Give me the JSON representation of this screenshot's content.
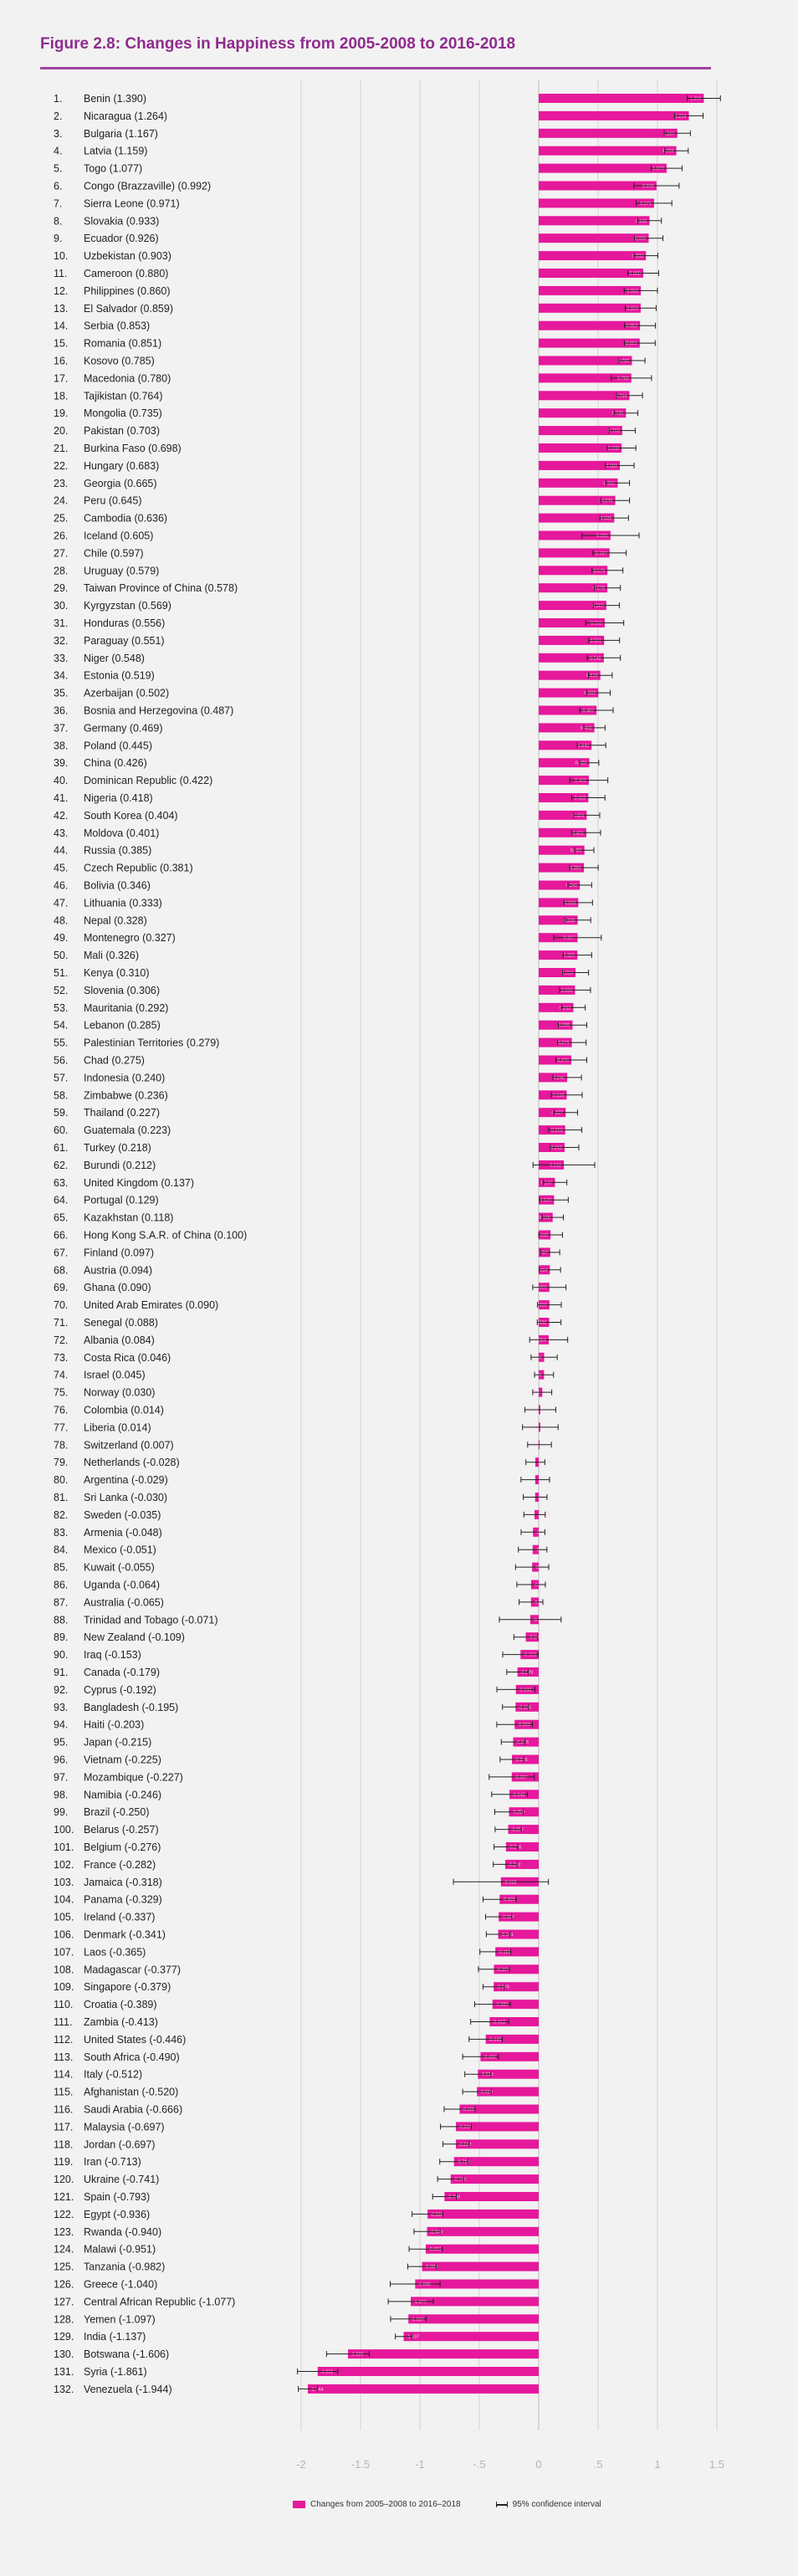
{
  "title": "Figure 2.8: Changes in Happiness from 2005-2008 to 2016-2018",
  "legend": {
    "bar_label": "Changes from 2005–2008 to 2016–2018",
    "ci_label": "95% confidence interval"
  },
  "colors": {
    "bar": "#e6189b",
    "title": "#8e2c8c",
    "grid": "#cfcfcf",
    "ci": "#222222"
  },
  "chart_data": {
    "type": "bar",
    "orientation": "horizontal",
    "xlim": [
      -2.2,
      1.6
    ],
    "xticks": [
      -2,
      -1.5,
      -1,
      -0.5,
      0,
      0.5,
      1,
      1.5
    ],
    "xtick_labels": [
      "-2",
      "-1.5",
      "-1",
      "-.5",
      "0",
      ".5",
      "1",
      "1.5"
    ],
    "grid": "vertical",
    "legend_position": "bottom",
    "rows": [
      {
        "rank": "1.",
        "label": "Benin (1.390)",
        "value": 1.39,
        "ci": 0.14
      },
      {
        "rank": "2.",
        "label": "Nicaragua (1.264)",
        "value": 1.264,
        "ci": 0.12
      },
      {
        "rank": "3.",
        "label": "Bulgaria (1.167)",
        "value": 1.167,
        "ci": 0.11
      },
      {
        "rank": "4.",
        "label": "Latvia (1.159)",
        "value": 1.159,
        "ci": 0.1
      },
      {
        "rank": "5.",
        "label": "Togo (1.077)",
        "value": 1.077,
        "ci": 0.13
      },
      {
        "rank": "6.",
        "label": "Congo (Brazzaville) (0.992)",
        "value": 0.992,
        "ci": 0.19
      },
      {
        "rank": "7.",
        "label": "Sierra Leone (0.971)",
        "value": 0.971,
        "ci": 0.15
      },
      {
        "rank": "8.",
        "label": "Slovakia (0.933)",
        "value": 0.933,
        "ci": 0.1
      },
      {
        "rank": "9.",
        "label": "Ecuador (0.926)",
        "value": 0.926,
        "ci": 0.12
      },
      {
        "rank": "10.",
        "label": "Uzbekistan (0.903)",
        "value": 0.903,
        "ci": 0.1
      },
      {
        "rank": "11.",
        "label": "Cameroon (0.880)",
        "value": 0.88,
        "ci": 0.13
      },
      {
        "rank": "12.",
        "label": "Philippines (0.860)",
        "value": 0.86,
        "ci": 0.14
      },
      {
        "rank": "13.",
        "label": "El Salvador (0.859)",
        "value": 0.859,
        "ci": 0.13
      },
      {
        "rank": "14.",
        "label": "Serbia (0.853)",
        "value": 0.853,
        "ci": 0.13
      },
      {
        "rank": "15.",
        "label": "Romania (0.851)",
        "value": 0.851,
        "ci": 0.13
      },
      {
        "rank": "16.",
        "label": "Kosovo (0.785)",
        "value": 0.785,
        "ci": 0.11
      },
      {
        "rank": "17.",
        "label": "Macedonia (0.780)",
        "value": 0.78,
        "ci": 0.17
      },
      {
        "rank": "18.",
        "label": "Tajikistan (0.764)",
        "value": 0.764,
        "ci": 0.11
      },
      {
        "rank": "19.",
        "label": "Mongolia (0.735)",
        "value": 0.735,
        "ci": 0.1
      },
      {
        "rank": "20.",
        "label": "Pakistan (0.703)",
        "value": 0.703,
        "ci": 0.11
      },
      {
        "rank": "21.",
        "label": "Burkina Faso (0.698)",
        "value": 0.698,
        "ci": 0.12
      },
      {
        "rank": "22.",
        "label": "Hungary (0.683)",
        "value": 0.683,
        "ci": 0.12
      },
      {
        "rank": "23.",
        "label": "Georgia (0.665)",
        "value": 0.665,
        "ci": 0.1
      },
      {
        "rank": "24.",
        "label": "Peru (0.645)",
        "value": 0.645,
        "ci": 0.12
      },
      {
        "rank": "25.",
        "label": "Cambodia (0.636)",
        "value": 0.636,
        "ci": 0.12
      },
      {
        "rank": "26.",
        "label": "Iceland (0.605)",
        "value": 0.605,
        "ci": 0.24
      },
      {
        "rank": "27.",
        "label": "Chile (0.597)",
        "value": 0.597,
        "ci": 0.14
      },
      {
        "rank": "28.",
        "label": "Uruguay (0.579)",
        "value": 0.579,
        "ci": 0.13
      },
      {
        "rank": "29.",
        "label": "Taiwan Province of China (0.578)",
        "value": 0.578,
        "ci": 0.11
      },
      {
        "rank": "30.",
        "label": "Kyrgyzstan (0.569)",
        "value": 0.569,
        "ci": 0.11
      },
      {
        "rank": "31.",
        "label": "Honduras (0.556)",
        "value": 0.556,
        "ci": 0.16
      },
      {
        "rank": "32.",
        "label": "Paraguay (0.551)",
        "value": 0.551,
        "ci": 0.13
      },
      {
        "rank": "33.",
        "label": "Niger (0.548)",
        "value": 0.548,
        "ci": 0.14
      },
      {
        "rank": "34.",
        "label": "Estonia (0.519)",
        "value": 0.519,
        "ci": 0.1
      },
      {
        "rank": "35.",
        "label": "Azerbaijan (0.502)",
        "value": 0.502,
        "ci": 0.1
      },
      {
        "rank": "36.",
        "label": "Bosnia and Herzegovina (0.487)",
        "value": 0.487,
        "ci": 0.14
      },
      {
        "rank": "37.",
        "label": "Germany (0.469)",
        "value": 0.469,
        "ci": 0.09
      },
      {
        "rank": "38.",
        "label": "Poland (0.445)",
        "value": 0.445,
        "ci": 0.12
      },
      {
        "rank": "39.",
        "label": "China (0.426)",
        "value": 0.426,
        "ci": 0.08
      },
      {
        "rank": "40.",
        "label": "Dominican Republic (0.422)",
        "value": 0.422,
        "ci": 0.16
      },
      {
        "rank": "41.",
        "label": "Nigeria (0.418)",
        "value": 0.418,
        "ci": 0.14
      },
      {
        "rank": "42.",
        "label": "South Korea (0.404)",
        "value": 0.404,
        "ci": 0.11
      },
      {
        "rank": "43.",
        "label": "Moldova (0.401)",
        "value": 0.401,
        "ci": 0.12
      },
      {
        "rank": "44.",
        "label": "Russia (0.385)",
        "value": 0.385,
        "ci": 0.08
      },
      {
        "rank": "45.",
        "label": "Czech Republic (0.381)",
        "value": 0.381,
        "ci": 0.12
      },
      {
        "rank": "46.",
        "label": "Bolivia (0.346)",
        "value": 0.346,
        "ci": 0.1
      },
      {
        "rank": "47.",
        "label": "Lithuania (0.333)",
        "value": 0.333,
        "ci": 0.12
      },
      {
        "rank": "48.",
        "label": "Nepal (0.328)",
        "value": 0.328,
        "ci": 0.11
      },
      {
        "rank": "49.",
        "label": "Montenegro (0.327)",
        "value": 0.327,
        "ci": 0.2
      },
      {
        "rank": "50.",
        "label": "Mali (0.326)",
        "value": 0.326,
        "ci": 0.12
      },
      {
        "rank": "51.",
        "label": "Kenya (0.310)",
        "value": 0.31,
        "ci": 0.11
      },
      {
        "rank": "52.",
        "label": "Slovenia (0.306)",
        "value": 0.306,
        "ci": 0.13
      },
      {
        "rank": "53.",
        "label": "Mauritania (0.292)",
        "value": 0.292,
        "ci": 0.1
      },
      {
        "rank": "54.",
        "label": "Lebanon (0.285)",
        "value": 0.285,
        "ci": 0.12
      },
      {
        "rank": "55.",
        "label": "Palestinian Territories (0.279)",
        "value": 0.279,
        "ci": 0.12
      },
      {
        "rank": "56.",
        "label": "Chad (0.275)",
        "value": 0.275,
        "ci": 0.13
      },
      {
        "rank": "57.",
        "label": "Indonesia (0.240)",
        "value": 0.24,
        "ci": 0.12
      },
      {
        "rank": "58.",
        "label": "Zimbabwe (0.236)",
        "value": 0.236,
        "ci": 0.13
      },
      {
        "rank": "59.",
        "label": "Thailand (0.227)",
        "value": 0.227,
        "ci": 0.1
      },
      {
        "rank": "60.",
        "label": "Guatemala (0.223)",
        "value": 0.223,
        "ci": 0.14
      },
      {
        "rank": "61.",
        "label": "Turkey (0.218)",
        "value": 0.218,
        "ci": 0.12
      },
      {
        "rank": "62.",
        "label": "Burundi (0.212)",
        "value": 0.212,
        "ci": 0.26
      },
      {
        "rank": "63.",
        "label": "United Kingdom (0.137)",
        "value": 0.137,
        "ci": 0.1
      },
      {
        "rank": "64.",
        "label": "Portugal (0.129)",
        "value": 0.129,
        "ci": 0.12
      },
      {
        "rank": "65.",
        "label": "Kazakhstan (0.118)",
        "value": 0.118,
        "ci": 0.09
      },
      {
        "rank": "66.",
        "label": "Hong Kong S.A.R. of China (0.100)",
        "value": 0.1,
        "ci": 0.1
      },
      {
        "rank": "67.",
        "label": "Finland (0.097)",
        "value": 0.097,
        "ci": 0.08
      },
      {
        "rank": "68.",
        "label": "Austria (0.094)",
        "value": 0.094,
        "ci": 0.09
      },
      {
        "rank": "69.",
        "label": "Ghana (0.090)",
        "value": 0.09,
        "ci": 0.14
      },
      {
        "rank": "70.",
        "label": "United Arab Emirates (0.090)",
        "value": 0.09,
        "ci": 0.1
      },
      {
        "rank": "71.",
        "label": "Senegal (0.088)",
        "value": 0.088,
        "ci": 0.1
      },
      {
        "rank": "72.",
        "label": "Albania (0.084)",
        "value": 0.084,
        "ci": 0.16
      },
      {
        "rank": "73.",
        "label": "Costa Rica (0.046)",
        "value": 0.046,
        "ci": 0.11
      },
      {
        "rank": "74.",
        "label": "Israel (0.045)",
        "value": 0.045,
        "ci": 0.08
      },
      {
        "rank": "75.",
        "label": "Norway (0.030)",
        "value": 0.03,
        "ci": 0.08
      },
      {
        "rank": "76.",
        "label": "Colombia (0.014)",
        "value": 0.014,
        "ci": 0.13
      },
      {
        "rank": "77.",
        "label": "Liberia (0.014)",
        "value": 0.014,
        "ci": 0.15
      },
      {
        "rank": "78.",
        "label": "Switzerland (0.007)",
        "value": 0.007,
        "ci": 0.1
      },
      {
        "rank": "79.",
        "label": "Netherlands (-0.028)",
        "value": -0.028,
        "ci": 0.08
      },
      {
        "rank": "80.",
        "label": "Argentina (-0.029)",
        "value": -0.029,
        "ci": 0.12
      },
      {
        "rank": "81.",
        "label": "Sri Lanka (-0.030)",
        "value": -0.03,
        "ci": 0.1
      },
      {
        "rank": "82.",
        "label": "Sweden (-0.035)",
        "value": -0.035,
        "ci": 0.09
      },
      {
        "rank": "83.",
        "label": "Armenia (-0.048)",
        "value": -0.048,
        "ci": 0.1
      },
      {
        "rank": "84.",
        "label": "Mexico (-0.051)",
        "value": -0.051,
        "ci": 0.12
      },
      {
        "rank": "85.",
        "label": "Kuwait (-0.055)",
        "value": -0.055,
        "ci": 0.14
      },
      {
        "rank": "86.",
        "label": "Uganda (-0.064)",
        "value": -0.064,
        "ci": 0.12
      },
      {
        "rank": "87.",
        "label": "Australia (-0.065)",
        "value": -0.065,
        "ci": 0.1
      },
      {
        "rank": "88.",
        "label": "Trinidad and Tobago (-0.071)",
        "value": -0.071,
        "ci": 0.26
      },
      {
        "rank": "89.",
        "label": "New Zealand (-0.109)",
        "value": -0.109,
        "ci": 0.1
      },
      {
        "rank": "90.",
        "label": "Iraq (-0.153)",
        "value": -0.153,
        "ci": 0.15
      },
      {
        "rank": "91.",
        "label": "Canada (-0.179)",
        "value": -0.179,
        "ci": 0.09
      },
      {
        "rank": "92.",
        "label": "Cyprus (-0.192)",
        "value": -0.192,
        "ci": 0.16
      },
      {
        "rank": "93.",
        "label": "Bangladesh (-0.195)",
        "value": -0.195,
        "ci": 0.11
      },
      {
        "rank": "94.",
        "label": "Haiti (-0.203)",
        "value": -0.203,
        "ci": 0.15
      },
      {
        "rank": "95.",
        "label": "Japan (-0.215)",
        "value": -0.215,
        "ci": 0.1
      },
      {
        "rank": "96.",
        "label": "Vietnam (-0.225)",
        "value": -0.225,
        "ci": 0.1
      },
      {
        "rank": "97.",
        "label": "Mozambique (-0.227)",
        "value": -0.227,
        "ci": 0.19
      },
      {
        "rank": "98.",
        "label": "Namibia (-0.246)",
        "value": -0.246,
        "ci": 0.15
      },
      {
        "rank": "99.",
        "label": "Brazil (-0.250)",
        "value": -0.25,
        "ci": 0.12
      },
      {
        "rank": "100.",
        "label": "Belarus (-0.257)",
        "value": -0.257,
        "ci": 0.11
      },
      {
        "rank": "101.",
        "label": "Belgium (-0.276)",
        "value": -0.276,
        "ci": 0.1
      },
      {
        "rank": "102.",
        "label": "France (-0.282)",
        "value": -0.282,
        "ci": 0.1
      },
      {
        "rank": "103.",
        "label": "Jamaica (-0.318)",
        "value": -0.318,
        "ci": 0.4
      },
      {
        "rank": "104.",
        "label": "Panama (-0.329)",
        "value": -0.329,
        "ci": 0.14
      },
      {
        "rank": "105.",
        "label": "Ireland (-0.337)",
        "value": -0.337,
        "ci": 0.11
      },
      {
        "rank": "106.",
        "label": "Denmark (-0.341)",
        "value": -0.341,
        "ci": 0.1
      },
      {
        "rank": "107.",
        "label": "Laos (-0.365)",
        "value": -0.365,
        "ci": 0.13
      },
      {
        "rank": "108.",
        "label": "Madagascar (-0.377)",
        "value": -0.377,
        "ci": 0.13
      },
      {
        "rank": "109.",
        "label": "Singapore (-0.379)",
        "value": -0.379,
        "ci": 0.09
      },
      {
        "rank": "110.",
        "label": "Croatia (-0.389)",
        "value": -0.389,
        "ci": 0.15
      },
      {
        "rank": "111.",
        "label": "Zambia (-0.413)",
        "value": -0.413,
        "ci": 0.16
      },
      {
        "rank": "112.",
        "label": "United States (-0.446)",
        "value": -0.446,
        "ci": 0.14
      },
      {
        "rank": "113.",
        "label": "South Africa (-0.490)",
        "value": -0.49,
        "ci": 0.15
      },
      {
        "rank": "114.",
        "label": "Italy (-0.512)",
        "value": -0.512,
        "ci": 0.11
      },
      {
        "rank": "115.",
        "label": "Afghanistan (-0.520)",
        "value": -0.52,
        "ci": 0.12
      },
      {
        "rank": "116.",
        "label": "Saudi Arabia (-0.666)",
        "value": -0.666,
        "ci": 0.13
      },
      {
        "rank": "117.",
        "label": "Malaysia (-0.697)",
        "value": -0.697,
        "ci": 0.13
      },
      {
        "rank": "118.",
        "label": "Jordan (-0.697)",
        "value": -0.697,
        "ci": 0.11
      },
      {
        "rank": "119.",
        "label": "Iran (-0.713)",
        "value": -0.713,
        "ci": 0.12
      },
      {
        "rank": "120.",
        "label": "Ukraine (-0.741)",
        "value": -0.741,
        "ci": 0.11
      },
      {
        "rank": "121.",
        "label": "Spain (-0.793)",
        "value": -0.793,
        "ci": 0.1
      },
      {
        "rank": "122.",
        "label": "Egypt (-0.936)",
        "value": -0.936,
        "ci": 0.13
      },
      {
        "rank": "123.",
        "label": "Rwanda (-0.940)",
        "value": -0.94,
        "ci": 0.11
      },
      {
        "rank": "124.",
        "label": "Malawi (-0.951)",
        "value": -0.951,
        "ci": 0.14
      },
      {
        "rank": "125.",
        "label": "Tanzania (-0.982)",
        "value": -0.982,
        "ci": 0.12
      },
      {
        "rank": "126.",
        "label": "Greece (-1.040)",
        "value": -1.04,
        "ci": 0.21
      },
      {
        "rank": "127.",
        "label": "Central African Republic (-1.077)",
        "value": -1.077,
        "ci": 0.19
      },
      {
        "rank": "128.",
        "label": "Yemen (-1.097)",
        "value": -1.097,
        "ci": 0.15
      },
      {
        "rank": "129.",
        "label": "India (-1.137)",
        "value": -1.137,
        "ci": 0.07
      },
      {
        "rank": "130.",
        "label": "Botswana (-1.606)",
        "value": -1.606,
        "ci": 0.18
      },
      {
        "rank": "131.",
        "label": "Syria (-1.861)",
        "value": -1.861,
        "ci": 0.17
      },
      {
        "rank": "132.",
        "label": "Venezuela (-1.944)",
        "value": -1.944,
        "ci": 0.08
      }
    ]
  }
}
